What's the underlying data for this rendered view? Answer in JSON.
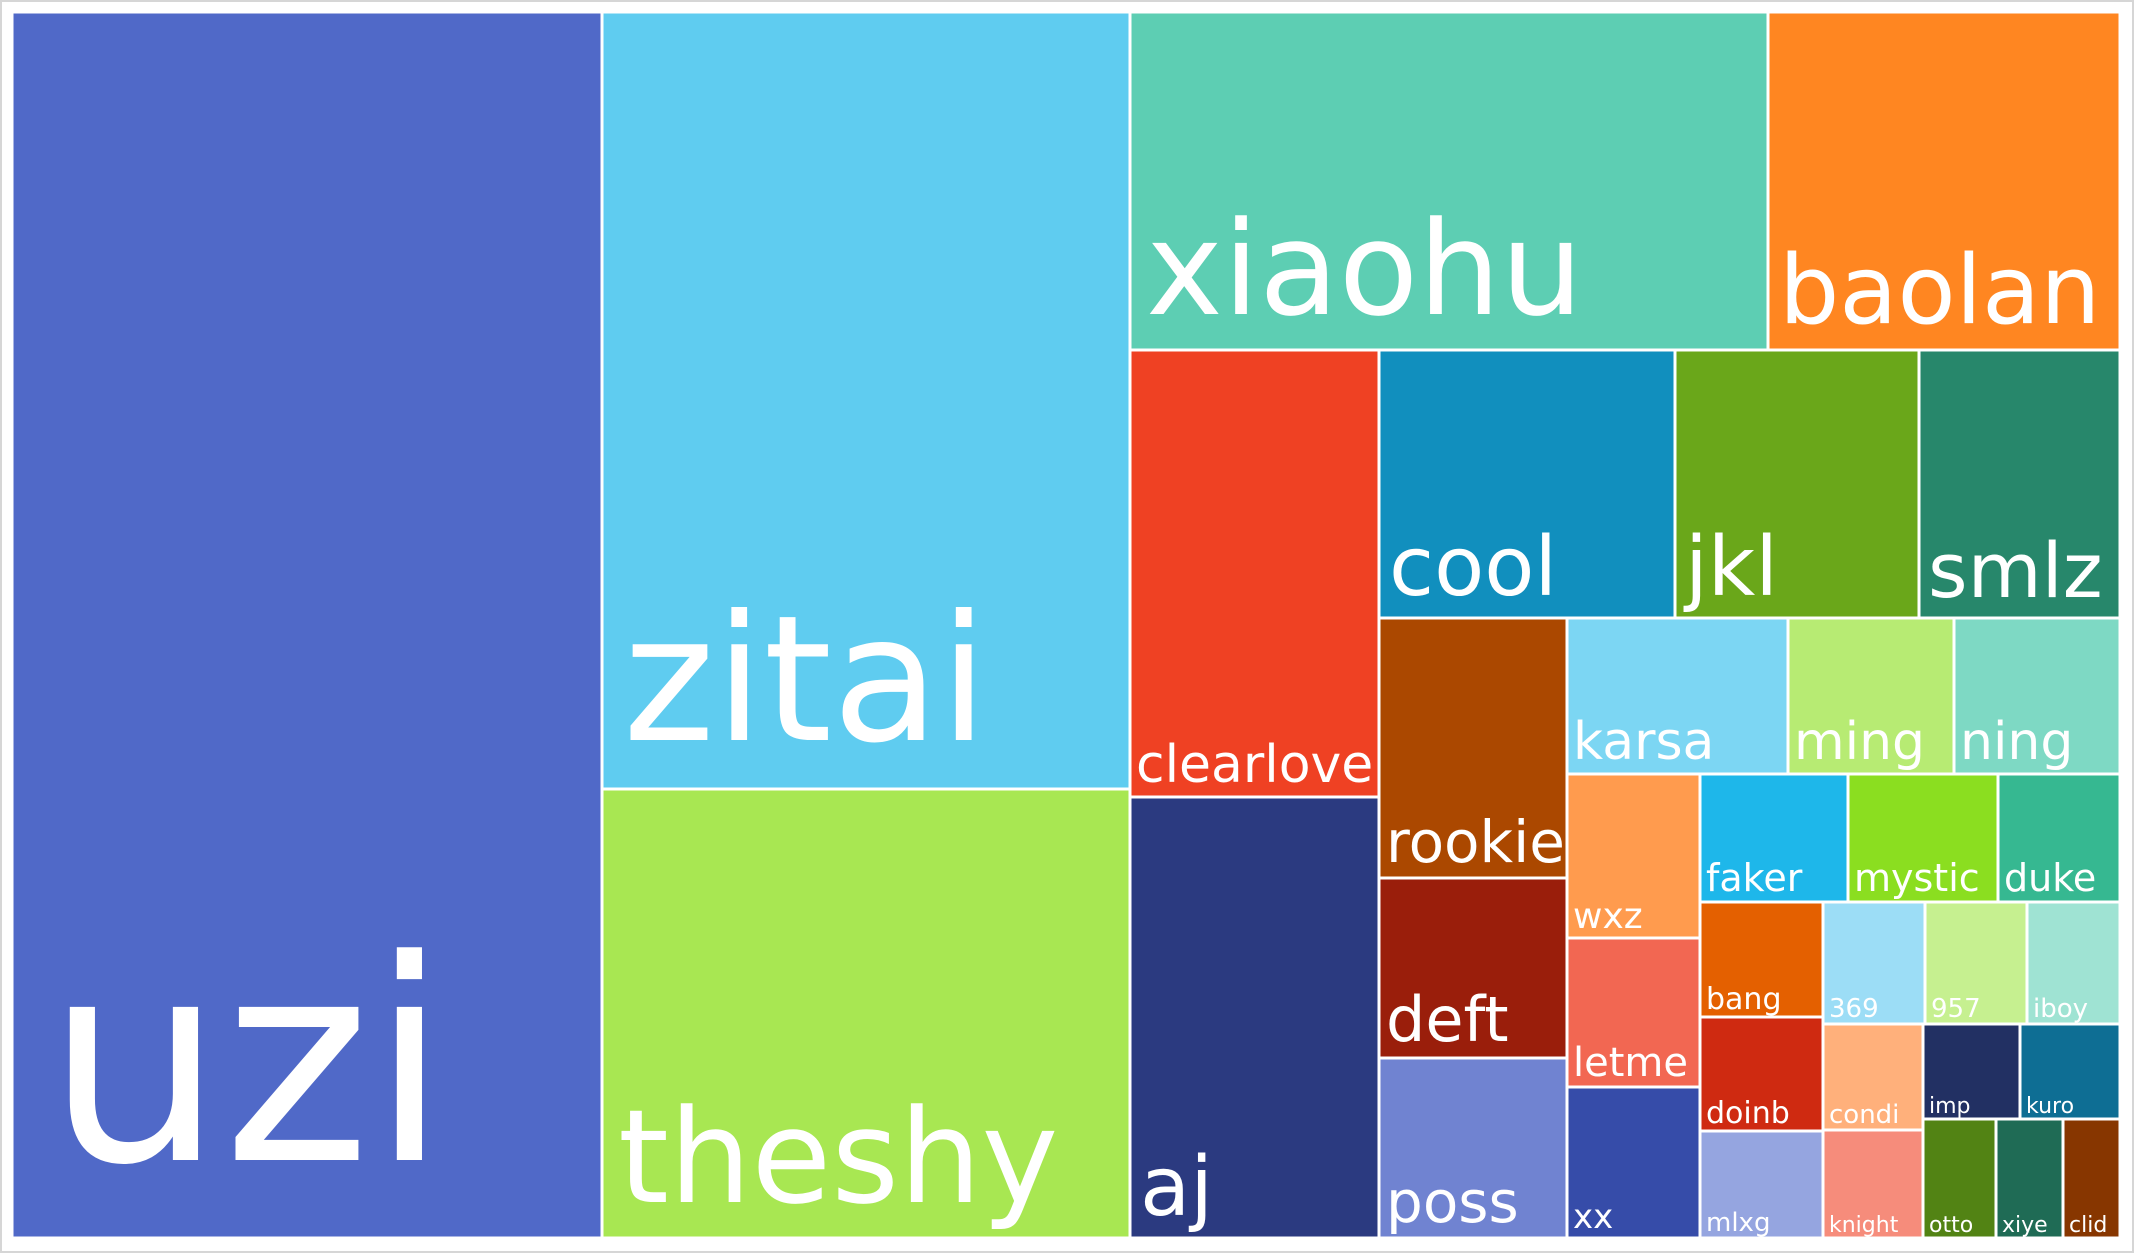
{
  "chart_data": {
    "type": "treemap",
    "items": [
      {
        "label": "uzi",
        "color": "#5069C8"
      },
      {
        "label": "zitai",
        "color": "#5FCCF0"
      },
      {
        "label": "theshy",
        "color": "#A8E752"
      },
      {
        "label": "xiaohu",
        "color": "#5DCEB3"
      },
      {
        "label": "baolan",
        "color": "#FF8621"
      },
      {
        "label": "clearlove",
        "color": "#EF4123"
      },
      {
        "label": "aj",
        "color": "#2B3A80"
      },
      {
        "label": "cool",
        "color": "#118FBE"
      },
      {
        "label": "jkl",
        "color": "#6AA71A"
      },
      {
        "label": "smlz",
        "color": "#27876B"
      },
      {
        "label": "rookie",
        "color": "#AB4800"
      },
      {
        "label": "deft",
        "color": "#9A1E0B"
      },
      {
        "label": "poss",
        "color": "#7083D1"
      },
      {
        "label": "karsa",
        "color": "#7CD6F3"
      },
      {
        "label": "ming",
        "color": "#B7EB73"
      },
      {
        "label": "ning",
        "color": "#7ED9C4"
      },
      {
        "label": "wxz",
        "color": "#FF9B4E"
      },
      {
        "label": "letme",
        "color": "#F26752"
      },
      {
        "label": "xx",
        "color": "#364CA9"
      },
      {
        "label": "faker",
        "color": "#1EB7EA"
      },
      {
        "label": "mystic",
        "color": "#8BDE20"
      },
      {
        "label": "duke",
        "color": "#36B891"
      },
      {
        "label": "bang",
        "color": "#E46000"
      },
      {
        "label": "doinb",
        "color": "#CF2A11"
      },
      {
        "label": "mlxg",
        "color": "#95A5E0"
      },
      {
        "label": "369",
        "color": "#9CDDF6"
      },
      {
        "label": "957",
        "color": "#C6F090"
      },
      {
        "label": "iboy",
        "color": "#9FE3D3"
      },
      {
        "label": "condi",
        "color": "#FFB07B"
      },
      {
        "label": "knight",
        "color": "#F68C7B"
      },
      {
        "label": "imp",
        "color": "#223063"
      },
      {
        "label": "kuro",
        "color": "#0E6E94"
      },
      {
        "label": "otto",
        "color": "#528314"
      },
      {
        "label": "xiye",
        "color": "#1F6B55"
      },
      {
        "label": "clid",
        "color": "#873600"
      }
    ]
  }
}
